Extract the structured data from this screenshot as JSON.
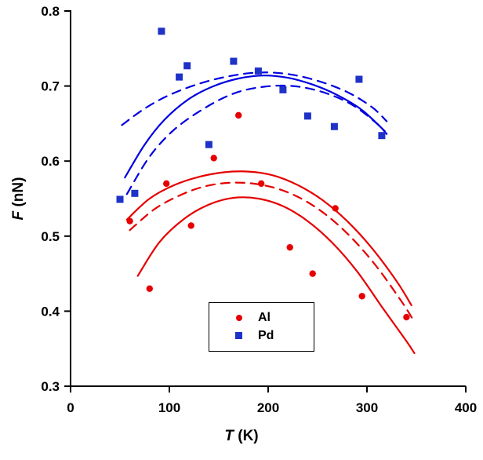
{
  "chart_data": {
    "type": "scatter",
    "title": "",
    "xlabel_var": "T",
    "xlabel_unit": "(K)",
    "ylabel_var": "F",
    "ylabel_unit": "(nN)",
    "xlim": [
      0,
      400
    ],
    "ylim": [
      0.3,
      0.8
    ],
    "xticks": [
      "0",
      "100",
      "200",
      "300",
      "400"
    ],
    "yticks": [
      "0.3",
      "0.4",
      "0.5",
      "0.6",
      "0.7",
      "0.8"
    ],
    "grid": false,
    "axis_color": "#000000",
    "background": "#ffffff",
    "legend_position": "inside-bottom-center",
    "series": [
      {
        "name": "Al",
        "marker": "circle",
        "color": "#e60000",
        "points": [
          [
            60,
            0.52
          ],
          [
            80,
            0.43
          ],
          [
            97,
            0.57
          ],
          [
            122,
            0.514
          ],
          [
            145,
            0.604
          ],
          [
            170,
            0.661
          ],
          [
            193,
            0.57
          ],
          [
            222,
            0.485
          ],
          [
            245,
            0.45
          ],
          [
            268,
            0.537
          ],
          [
            295,
            0.42
          ],
          [
            340,
            0.392
          ]
        ]
      },
      {
        "name": "Pd",
        "marker": "square",
        "color": "#1e32c8",
        "points": [
          [
            50,
            0.549
          ],
          [
            65,
            0.557
          ],
          [
            92,
            0.773
          ],
          [
            110,
            0.712
          ],
          [
            118,
            0.727
          ],
          [
            140,
            0.622
          ],
          [
            165,
            0.733
          ],
          [
            190,
            0.72
          ],
          [
            215,
            0.695
          ],
          [
            240,
            0.66
          ],
          [
            267,
            0.646
          ],
          [
            292,
            0.709
          ],
          [
            315,
            0.634
          ]
        ]
      }
    ],
    "curves": [
      {
        "name": "Pd-fit-center",
        "color": "#0000e0",
        "style": "solid",
        "points": [
          [
            55,
            0.578
          ],
          [
            75,
            0.622
          ],
          [
            95,
            0.655
          ],
          [
            120,
            0.683
          ],
          [
            145,
            0.7
          ],
          [
            170,
            0.71
          ],
          [
            195,
            0.714
          ],
          [
            220,
            0.711
          ],
          [
            245,
            0.702
          ],
          [
            270,
            0.688
          ],
          [
            295,
            0.668
          ],
          [
            318,
            0.64
          ]
        ]
      },
      {
        "name": "Pd-fit-upper-band",
        "color": "#0000e0",
        "style": "dashed",
        "points": [
          [
            52,
            0.648
          ],
          [
            75,
            0.67
          ],
          [
            100,
            0.688
          ],
          [
            130,
            0.703
          ],
          [
            160,
            0.713
          ],
          [
            190,
            0.718
          ],
          [
            220,
            0.716
          ],
          [
            250,
            0.707
          ],
          [
            280,
            0.692
          ],
          [
            305,
            0.672
          ],
          [
            320,
            0.653
          ]
        ]
      },
      {
        "name": "Pd-fit-lower-band",
        "color": "#0000e0",
        "style": "dashed",
        "points": [
          [
            57,
            0.556
          ],
          [
            80,
            0.606
          ],
          [
            105,
            0.642
          ],
          [
            135,
            0.67
          ],
          [
            165,
            0.69
          ],
          [
            195,
            0.699
          ],
          [
            225,
            0.7
          ],
          [
            255,
            0.692
          ],
          [
            285,
            0.675
          ],
          [
            310,
            0.65
          ],
          [
            320,
            0.636
          ]
        ]
      },
      {
        "name": "Al-fit-upper",
        "color": "#e60000",
        "style": "solid",
        "points": [
          [
            57,
            0.522
          ],
          [
            80,
            0.55
          ],
          [
            105,
            0.568
          ],
          [
            130,
            0.579
          ],
          [
            155,
            0.585
          ],
          [
            180,
            0.586
          ],
          [
            205,
            0.581
          ],
          [
            230,
            0.568
          ],
          [
            255,
            0.548
          ],
          [
            280,
            0.52
          ],
          [
            305,
            0.484
          ],
          [
            330,
            0.44
          ],
          [
            345,
            0.408
          ]
        ]
      },
      {
        "name": "Al-fit-center",
        "color": "#e60000",
        "style": "dashed",
        "points": [
          [
            60,
            0.508
          ],
          [
            85,
            0.536
          ],
          [
            110,
            0.554
          ],
          [
            135,
            0.566
          ],
          [
            160,
            0.571
          ],
          [
            185,
            0.57
          ],
          [
            210,
            0.563
          ],
          [
            235,
            0.549
          ],
          [
            260,
            0.527
          ],
          [
            285,
            0.497
          ],
          [
            310,
            0.459
          ],
          [
            335,
            0.413
          ],
          [
            347,
            0.388
          ]
        ]
      },
      {
        "name": "Al-fit-lower",
        "color": "#e60000",
        "style": "solid",
        "points": [
          [
            68,
            0.447
          ],
          [
            90,
            0.492
          ],
          [
            115,
            0.523
          ],
          [
            140,
            0.542
          ],
          [
            165,
            0.551
          ],
          [
            190,
            0.55
          ],
          [
            215,
            0.54
          ],
          [
            240,
            0.52
          ],
          [
            265,
            0.491
          ],
          [
            290,
            0.453
          ],
          [
            315,
            0.406
          ],
          [
            340,
            0.36
          ],
          [
            348,
            0.344
          ]
        ]
      }
    ]
  },
  "legend": {
    "items": [
      {
        "label": "Al"
      },
      {
        "label": "Pd"
      }
    ]
  }
}
